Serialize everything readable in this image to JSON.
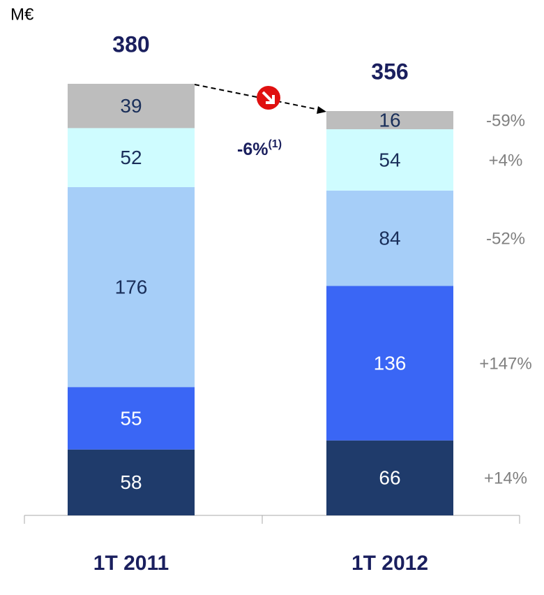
{
  "chart_data": {
    "type": "stacked_bar",
    "unit": "M€",
    "categories": [
      "1T 2011",
      "1T 2012"
    ],
    "series": [
      {
        "color": "#1f3b6b",
        "label_color": "#ffffff",
        "values": [
          58,
          66
        ]
      },
      {
        "color": "#3a66f5",
        "label_color": "#ffffff",
        "values": [
          55,
          136
        ]
      },
      {
        "color": "#a6cef8",
        "label_color": "#1a2f5a",
        "values": [
          176,
          84
        ]
      },
      {
        "color": "#cffcff",
        "label_color": "#1a2f5a",
        "values": [
          52,
          54
        ]
      },
      {
        "color": "#bdbdbd",
        "label_color": "#1a2f5a",
        "values": [
          39,
          16
        ]
      }
    ],
    "totals": [
      380,
      356
    ],
    "changes": [
      "+14%",
      "+147%",
      "-52%",
      "+4%",
      "-59%"
    ],
    "annotation": "-6%",
    "annotation_note": "(1)"
  }
}
